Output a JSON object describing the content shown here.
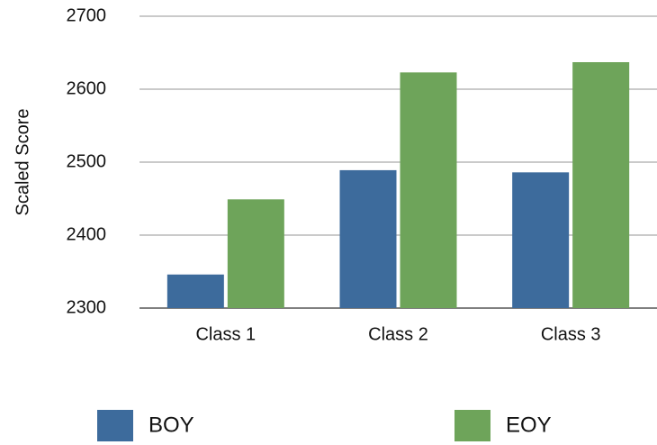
{
  "chart_data": {
    "type": "bar",
    "ylabel": "Scaled Score",
    "categories": [
      "Class 1",
      "Class 2",
      "Class 3"
    ],
    "series": [
      {
        "name": "BOY",
        "color": "#3d6b9c",
        "values": [
          2346,
          2489,
          2486
        ]
      },
      {
        "name": "EOY",
        "color": "#6ea45a",
        "values": [
          2449,
          2623,
          2637
        ]
      }
    ],
    "ylim": [
      2300,
      2700
    ],
    "yticks": [
      2300,
      2400,
      2500,
      2600,
      2700
    ],
    "grid": true,
    "legend": "bottom"
  }
}
